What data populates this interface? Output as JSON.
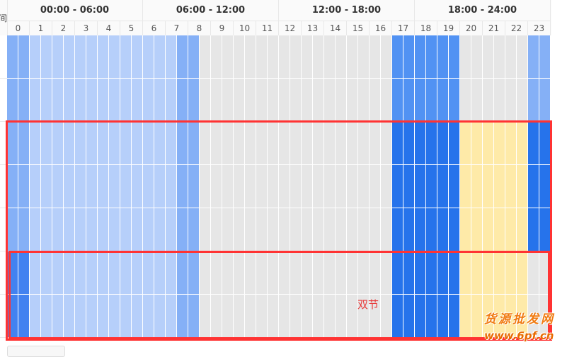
{
  "header": {
    "corner_label": "时间",
    "periods": [
      "00:00 - 06:00",
      "06:00 - 12:00",
      "12:00 - 18:00",
      "18:00 - 24:00"
    ],
    "hours": [
      "0",
      "1",
      "2",
      "3",
      "4",
      "5",
      "6",
      "7",
      "8",
      "9",
      "10",
      "11",
      "12",
      "13",
      "14",
      "15",
      "16",
      "17",
      "18",
      "19",
      "20",
      "21",
      "22",
      "23"
    ]
  },
  "level_colors": {
    "0": "#e6e6e6",
    "1": "#b6cffa",
    "2": "#85b0f6",
    "3": "#5192f3",
    "4": "#2673eb",
    "5": "#feeaa8",
    "6": "#4282f0"
  },
  "rows": [
    "221111111111111220000000000000000033333300000022",
    "221111111111111220000000000000000033333300000022",
    "221111111111111220000000000000000044444455555544",
    "221111111111111220000000000000000044444455555544",
    "221111111111111220000000000000000044444455555544",
    "661111111111111220000000000000000044444455555500",
    "661111111111111220000000000000000044444455555500"
  ],
  "annotation": {
    "label": "双节",
    "color": "#ff3333"
  },
  "watermark": {
    "name": "货源批发网",
    "url": "www.6pf.cn"
  }
}
